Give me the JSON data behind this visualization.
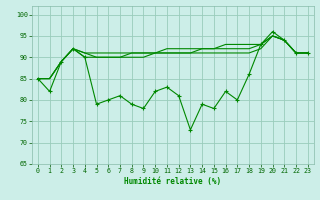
{
  "xlabel": "Humidité relative (%)",
  "background_color": "#cceee8",
  "grid_color": "#99ccbb",
  "line_color": "#008800",
  "xlim": [
    -0.5,
    23.5
  ],
  "ylim": [
    65,
    102
  ],
  "yticks": [
    65,
    70,
    75,
    80,
    85,
    90,
    95,
    100
  ],
  "xticks": [
    0,
    1,
    2,
    3,
    4,
    5,
    6,
    7,
    8,
    9,
    10,
    11,
    12,
    13,
    14,
    15,
    16,
    17,
    18,
    19,
    20,
    21,
    22,
    23
  ],
  "series_main": [
    85,
    82,
    89,
    92,
    90,
    79,
    80,
    81,
    79,
    78,
    82,
    83,
    81,
    73,
    79,
    78,
    82,
    80,
    86,
    93,
    96,
    94,
    91,
    91
  ],
  "series_a": [
    85,
    85,
    89,
    92,
    90,
    90,
    90,
    90,
    90,
    90,
    91,
    91,
    91,
    91,
    91,
    91,
    91,
    91,
    91,
    92,
    95,
    94,
    91,
    91
  ],
  "series_b": [
    85,
    85,
    89,
    92,
    91,
    90,
    90,
    90,
    91,
    91,
    91,
    91,
    91,
    91,
    92,
    92,
    92,
    92,
    92,
    93,
    95,
    94,
    91,
    91
  ],
  "series_c": [
    85,
    85,
    89,
    92,
    91,
    91,
    91,
    91,
    91,
    91,
    91,
    92,
    92,
    92,
    92,
    92,
    93,
    93,
    93,
    93,
    95,
    94,
    91,
    91
  ]
}
